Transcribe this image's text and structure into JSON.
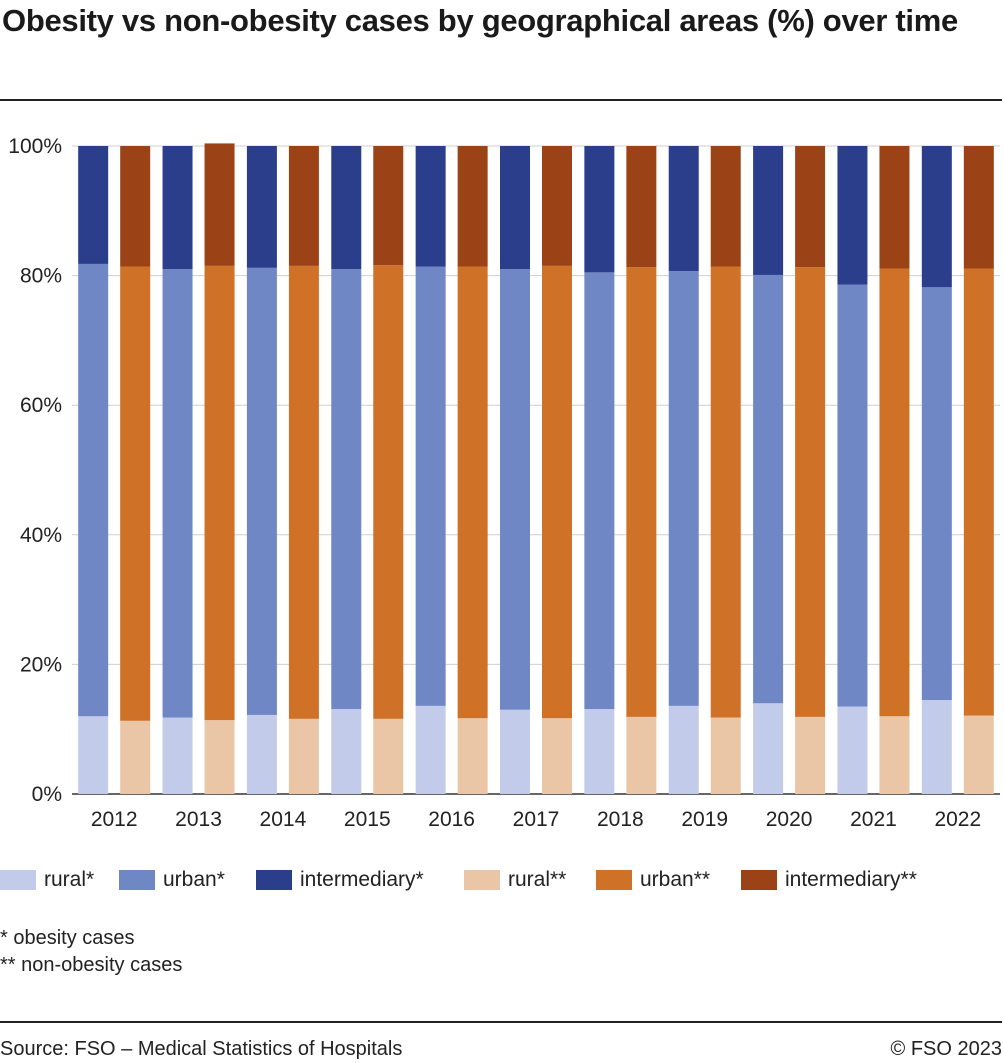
{
  "title": "Obesity vs non-obesity cases by geographical areas (%) over time",
  "notes": [
    "* obesity cases",
    "** non-obesity cases"
  ],
  "source": "Source: FSO – Medical Statistics of Hospitals",
  "copyright": "© FSO 2023",
  "legend": [
    {
      "label": "rural*",
      "color": "#c2cbea"
    },
    {
      "label": "urban*",
      "color": "#7087c5"
    },
    {
      "label": "intermediary*",
      "color": "#2a3e8c"
    },
    {
      "label": "rural**",
      "color": "#ebc6a6"
    },
    {
      "label": "urban**",
      "color": "#cf7127"
    },
    {
      "label": "intermediary**",
      "color": "#9b4317"
    }
  ],
  "chart_data": {
    "type": "bar",
    "stacked": true,
    "categories": [
      "2012",
      "2013",
      "2014",
      "2015",
      "2016",
      "2017",
      "2018",
      "2019",
      "2020",
      "2021",
      "2022"
    ],
    "groups": [
      "*",
      "**"
    ],
    "series": [
      {
        "name": "rural*",
        "group": "*",
        "color": "#c2cbea",
        "values": [
          12.0,
          11.8,
          12.2,
          13.1,
          13.6,
          13.0,
          13.1,
          13.6,
          14.0,
          13.5,
          14.5
        ]
      },
      {
        "name": "urban*",
        "group": "*",
        "color": "#7087c5",
        "values": [
          69.8,
          69.2,
          69.0,
          67.9,
          67.8,
          68.0,
          67.4,
          67.1,
          66.1,
          65.1,
          63.7
        ]
      },
      {
        "name": "intermediary*",
        "group": "*",
        "color": "#2a3e8c",
        "values": [
          18.2,
          19.0,
          18.8,
          19.0,
          18.6,
          19.0,
          19.5,
          19.3,
          19.9,
          21.4,
          21.8
        ]
      },
      {
        "name": "rural**",
        "group": "**",
        "color": "#ebc6a6",
        "values": [
          11.3,
          11.4,
          11.6,
          11.6,
          11.7,
          11.7,
          11.9,
          11.8,
          11.9,
          12.0,
          12.1
        ]
      },
      {
        "name": "urban**",
        "group": "**",
        "color": "#cf7127",
        "values": [
          70.1,
          70.1,
          69.9,
          70.0,
          69.7,
          69.8,
          69.4,
          69.6,
          69.4,
          69.1,
          69.0
        ]
      },
      {
        "name": "intermediary**",
        "group": "**",
        "color": "#9b4317",
        "values": [
          18.6,
          18.9,
          18.5,
          18.4,
          18.6,
          18.5,
          18.7,
          18.6,
          18.7,
          18.9,
          18.9
        ]
      }
    ],
    "ylim": [
      0,
      100
    ],
    "yticks": [
      "0%",
      "20%",
      "40%",
      "60%",
      "80%",
      "100%"
    ],
    "grid": true,
    "legend_position": "bottom"
  }
}
